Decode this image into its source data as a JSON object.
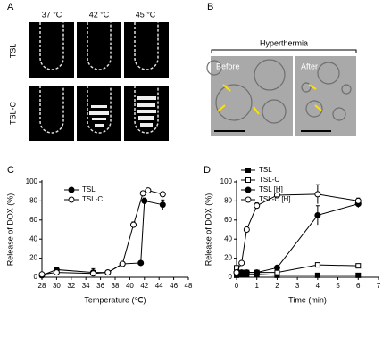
{
  "panels": {
    "a": {
      "label": "A",
      "columns": [
        "37 °C",
        "42 °C",
        "45 °C"
      ],
      "rows": [
        "TSL",
        "TSL-C"
      ]
    },
    "b": {
      "label": "B",
      "title": "Hyperthermia",
      "images": [
        "Before",
        "After"
      ]
    },
    "c": {
      "label": "C"
    },
    "d": {
      "label": "D"
    }
  },
  "chart_data": [
    {
      "type": "line",
      "xlabel": "Temperature (℃)",
      "ylabel": "Release of DOX (%)",
      "xlim": [
        28,
        48
      ],
      "xticks": [
        28,
        30,
        32,
        34,
        36,
        38,
        40,
        42,
        44,
        46,
        48
      ],
      "ylim": [
        0,
        100
      ],
      "yticks": [
        0,
        20,
        40,
        60,
        80,
        100
      ],
      "series": [
        {
          "name": "TSL",
          "color": "#000000",
          "marker": "circle",
          "filled": true,
          "x": [
            28,
            30,
            35,
            37,
            39,
            41.5,
            42,
            44.5
          ],
          "values": [
            2,
            8,
            5,
            5,
            14,
            15,
            80,
            76
          ],
          "errors": [
            0,
            1,
            4,
            2,
            1,
            0,
            3,
            5
          ]
        },
        {
          "name": "TSL-C",
          "color": "#000000",
          "marker": "circle",
          "filled": false,
          "x": [
            28,
            30,
            35,
            37,
            39,
            40.5,
            41.8,
            42.5,
            44.5
          ],
          "values": [
            3,
            5,
            4,
            5,
            14,
            55,
            88,
            91,
            87
          ],
          "errors": [
            0,
            0,
            3,
            0,
            1,
            3,
            2,
            1,
            2
          ]
        }
      ]
    },
    {
      "type": "line",
      "xlabel": "Time (min)",
      "ylabel": "Release of DOX (%)",
      "xlim": [
        0,
        7
      ],
      "xticks": [
        0,
        1,
        2,
        3,
        4,
        5,
        6,
        7
      ],
      "ylim": [
        0,
        100
      ],
      "yticks": [
        0,
        20,
        40,
        60,
        80,
        100
      ],
      "series": [
        {
          "name": "TSL",
          "color": "#000000",
          "marker": "square",
          "filled": true,
          "x": [
            0,
            0.25,
            0.5,
            1,
            2,
            4,
            6
          ],
          "values": [
            2,
            3,
            3,
            3,
            2,
            2,
            2
          ],
          "errors": [
            0,
            0,
            0,
            0,
            0,
            0,
            0
          ]
        },
        {
          "name": "TSL-C",
          "color": "#000000",
          "marker": "square",
          "filled": false,
          "x": [
            0,
            0.25,
            0.5,
            1,
            2,
            4,
            6
          ],
          "values": [
            10,
            5,
            5,
            5,
            5,
            13,
            12
          ],
          "errors": [
            0,
            0,
            0,
            0,
            0,
            0,
            0
          ]
        },
        {
          "name": "TSL [H]",
          "color": "#000000",
          "marker": "circle",
          "filled": true,
          "x": [
            0,
            0.25,
            0.5,
            1,
            2,
            4,
            6
          ],
          "values": [
            5,
            5,
            5,
            5,
            10,
            65,
            77
          ],
          "errors": [
            0,
            0,
            0,
            0,
            0,
            10,
            4
          ]
        },
        {
          "name": "TSL-C [H]",
          "color": "#000000",
          "marker": "circle",
          "filled": false,
          "x": [
            0,
            0.25,
            0.5,
            1,
            2,
            4,
            6
          ],
          "values": [
            5,
            15,
            50,
            75,
            86,
            87,
            80
          ],
          "errors": [
            0,
            0,
            0,
            3,
            0,
            10,
            3
          ]
        }
      ]
    }
  ]
}
